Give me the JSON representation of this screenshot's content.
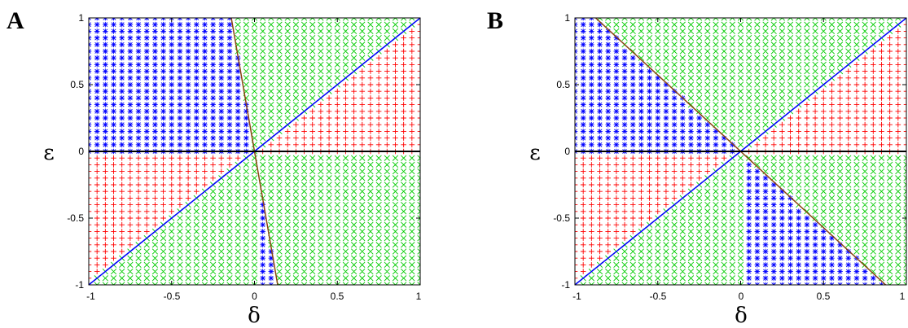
{
  "chart_data": [
    {
      "panel": "A",
      "type": "scatter",
      "title": "",
      "xlabel": "δ",
      "ylabel": "ε",
      "xlim": [
        -1,
        1
      ],
      "ylim": [
        -1,
        1
      ],
      "xticks": [
        "-1",
        "-0.5",
        "0",
        "0.5",
        "1"
      ],
      "yticks": [
        "-1",
        "-0.5",
        "0",
        "0.5",
        "1"
      ],
      "grid": false,
      "series": [
        {
          "marker": "*",
          "color": "#0000ff"
        },
        {
          "marker": "x",
          "color": "#00cc00"
        },
        {
          "marker": "+",
          "color": "#ff0000"
        }
      ],
      "lines": [
        {
          "color": "#0000ff",
          "points": [
            [
              -1,
              -1
            ],
            [
              1,
              1
            ]
          ]
        },
        {
          "color": "#8b4513",
          "points": [
            [
              -0.14,
              1
            ],
            [
              0.14,
              -1
            ]
          ]
        },
        {
          "color": "#000000",
          "points": [
            [
              -1,
              0
            ],
            [
              1,
              0
            ]
          ]
        }
      ]
    },
    {
      "panel": "B",
      "type": "scatter",
      "title": "",
      "xlabel": "δ",
      "ylabel": "ε",
      "xlim": [
        -1,
        1
      ],
      "ylim": [
        -1,
        1
      ],
      "xticks": [
        "-1",
        "-0.5",
        "0",
        "0.5",
        "1"
      ],
      "yticks": [
        "-1",
        "-0.5",
        "0",
        "0.5",
        "1"
      ],
      "grid": false,
      "series": [
        {
          "marker": "*",
          "color": "#0000ff"
        },
        {
          "marker": "x",
          "color": "#00cc00"
        },
        {
          "marker": "+",
          "color": "#ff0000"
        }
      ],
      "lines": [
        {
          "color": "#0000ff",
          "points": [
            [
              -1,
              -1
            ],
            [
              1,
              1
            ]
          ]
        },
        {
          "color": "#8b4513",
          "points": [
            [
              -0.875,
              1
            ],
            [
              0.875,
              -1
            ]
          ]
        },
        {
          "color": "#000000",
          "points": [
            [
              -1,
              0
            ],
            [
              1,
              0
            ]
          ]
        }
      ]
    }
  ]
}
